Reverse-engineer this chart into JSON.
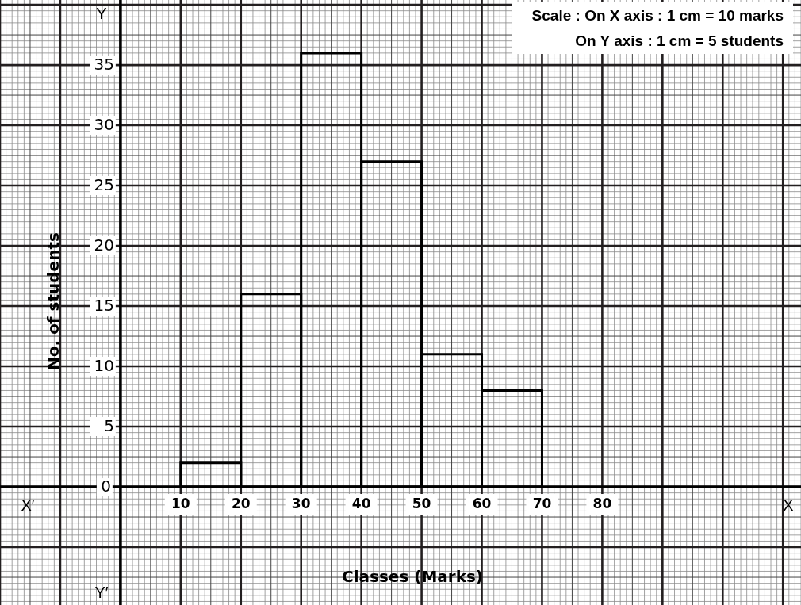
{
  "chart_data": {
    "type": "histogram",
    "xlabel": "Classes (Marks)",
    "ylabel": "No. of students",
    "bins": [
      10,
      20,
      30,
      40,
      50,
      60,
      70
    ],
    "values": [
      2,
      16,
      36,
      27,
      11,
      8
    ],
    "color": "#000000",
    "xlim": [
      -20,
      113
    ],
    "ylim": [
      -9.8,
      40.4
    ],
    "xticks": [
      10,
      20,
      30,
      40,
      50,
      60,
      70,
      80
    ],
    "yticks": [
      0,
      5,
      10,
      15,
      20,
      25,
      30,
      35
    ],
    "grid": true,
    "annotations": [
      "Scale : On X axis : 1 cm = 10 marks",
      "On Y axis : 1 cm = 5 students",
      "X′",
      "X",
      "Y",
      "Y′"
    ]
  }
}
